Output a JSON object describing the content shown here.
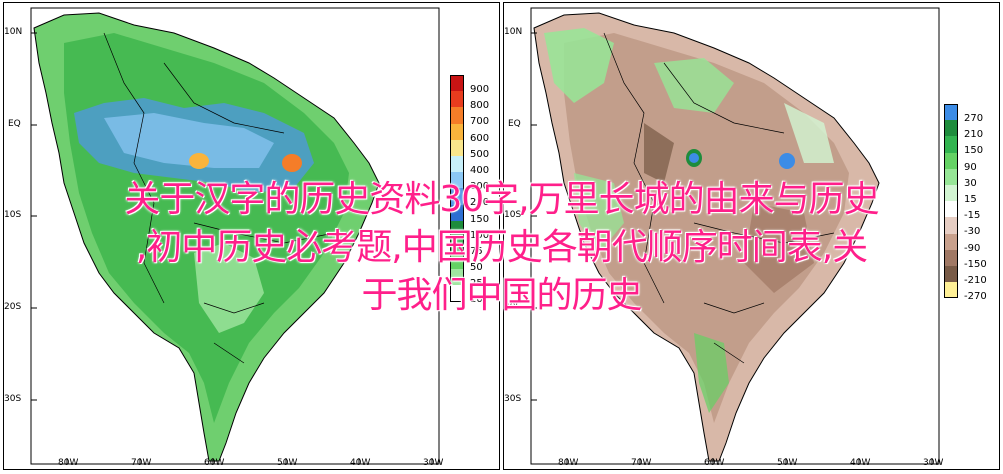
{
  "maps": [
    {
      "id": "left",
      "lat_labels": [
        "10N",
        "EQ",
        "10S",
        "20S",
        "30S"
      ],
      "lon_labels": [
        "80W",
        "70W",
        "60W",
        "50W",
        "40W",
        "30W"
      ],
      "legend": {
        "labels": [
          "900",
          "800",
          "700",
          "600",
          "500",
          "400",
          "300",
          "200",
          "150",
          "100",
          "75",
          "50",
          "25",
          "10"
        ],
        "colors": [
          "#c81414",
          "#e83c1e",
          "#f57d28",
          "#fab43c",
          "#fae68c",
          "#c8f0fa",
          "#8cc8f5",
          "#5096e6",
          "#2d6ed2",
          "#1e8c3c",
          "#32b450",
          "#64d264",
          "#a0e6a0",
          "#ffffff"
        ]
      }
    },
    {
      "id": "right",
      "lat_labels": [
        "10N",
        "EQ",
        "10S",
        "20S",
        "30S"
      ],
      "lon_labels": [
        "80W",
        "70W",
        "60W",
        "50W",
        "40W",
        "30W"
      ],
      "legend": {
        "labels": [
          "270",
          "210",
          "150",
          "90",
          "30",
          "15",
          "-15",
          "-30",
          "-90",
          "-150",
          "-210",
          "-270"
        ],
        "colors": [
          "#3c8ce6",
          "#1e8c3c",
          "#32b450",
          "#64d264",
          "#96e696",
          "#d2f5d2",
          "#ffffff",
          "#e6cdc3",
          "#c8a08c",
          "#a07864",
          "#785a46",
          "#fff096"
        ]
      }
    }
  ],
  "overlay_text": [
    "关于汉字的历史资料30字,万里长城的由来与历史",
    ",初中历史必考题,中国历史各朝代顺序时间表,关",
    "于我们中国的历史"
  ]
}
